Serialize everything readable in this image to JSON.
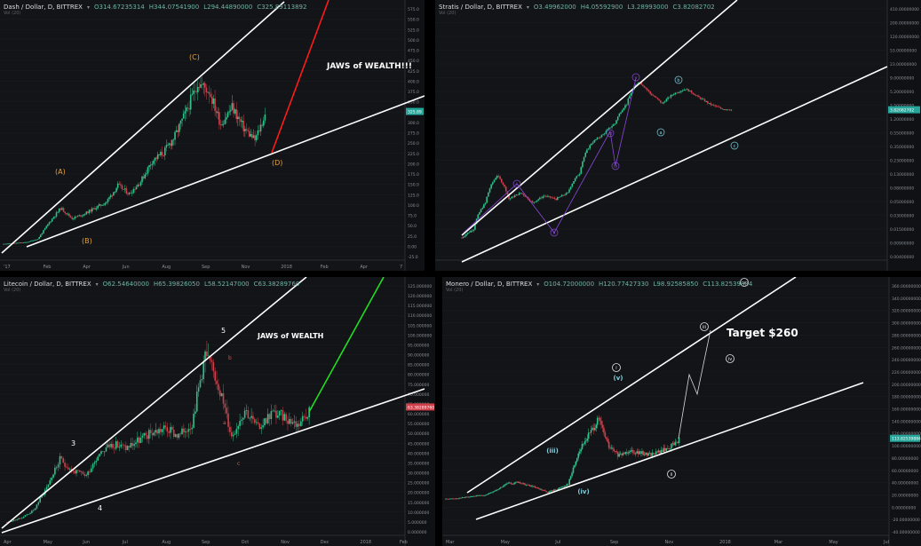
{
  "colors": {
    "background": "#121417",
    "up": "#2ec28b",
    "down": "#d0404a",
    "trendline": "#ffffff",
    "dash_projection": "#ff1a1a",
    "ltc_projection": "#22dd22",
    "wave_orange": "#e4a040",
    "wave_purple": "#8a4ad8",
    "wave_teal": "#7fd0e0",
    "wave_red": "#e05050"
  },
  "panels": {
    "dash": {
      "header": {
        "symbol": "Dash / Dollar, D, BITTREX",
        "open": "O314.67235314",
        "high": "H344.07541900",
        "low": "L294.44890000",
        "close": "C325.89113892"
      },
      "sub": "Vol (20)",
      "annotation": "JAWS of WEALTH!!!",
      "x_ticks": [
        "'17",
        "Feb",
        "Apr",
        "Jun",
        "Aug",
        "Sep",
        "Nov",
        "2018",
        "Feb",
        "Apr",
        "7"
      ],
      "y_ticks": [
        "575.0",
        "550.0",
        "525.0",
        "500.0",
        "475.0",
        "450.0",
        "425.0",
        "400.0",
        "375.0",
        "350.0",
        "325.0",
        "300.0",
        "275.0",
        "250.0",
        "225.0",
        "200.0",
        "175.0",
        "150.0",
        "125.0",
        "100.0",
        "75.0",
        "50.0",
        "25.0",
        "0.00",
        "-25.0"
      ],
      "price_label": "325.89",
      "waves": [
        "(A)",
        "(B)",
        "(C)",
        "(D)"
      ]
    },
    "stratis": {
      "header": {
        "symbol": "Stratis / Dollar, D, BITTREX",
        "open": "O3.49962000",
        "high": "H4.05592900",
        "low": "L3.28993000",
        "close": "C3.82082702"
      },
      "sub": "Vol (20)",
      "x_ticks": [],
      "y_ticks": [
        "410.00000000",
        "200.00000000",
        "120.00000000",
        "53.00000000",
        "23.00000000",
        "9.00000000",
        "5.20000000",
        "2.50000000",
        "1.20000000",
        "0.55000000",
        "0.35000000",
        "0.23000000",
        "0.13000000",
        "0.08000000",
        "0.05000000",
        "0.03000000",
        "0.01500000",
        "0.00900000",
        "0.00400000"
      ],
      "price_label": "3.82082702",
      "waves": [
        "i",
        "ii",
        "iii",
        "iv",
        "v",
        "a",
        "b",
        "c"
      ]
    },
    "litecoin": {
      "header": {
        "symbol": "Litecoin / Dollar, D, BITTREX",
        "open": "O62.54640000",
        "high": "H65.39826050",
        "low": "L58.52147000",
        "close": "C63.38289760"
      },
      "sub": "Vol (20)",
      "annotation": "JAWS of WEALTH",
      "x_ticks": [
        "Apr",
        "May",
        "Jun",
        "Jul",
        "Aug",
        "Sep",
        "Oct",
        "Nov",
        "Dec",
        "2018",
        "Feb"
      ],
      "y_ticks": [
        "125.000000",
        "120.000000",
        "115.000000",
        "110.000000",
        "105.000000",
        "100.000000",
        "95.000000",
        "90.000000",
        "85.000000",
        "80.000000",
        "75.000000",
        "70.000000",
        "65.000000",
        "60.000000",
        "55.000000",
        "50.000000",
        "45.000000",
        "40.000000",
        "35.000000",
        "30.000000",
        "25.000000",
        "20.000000",
        "15.000000",
        "10.000000",
        "5.000000",
        "0.000000"
      ],
      "price_label": "63.38289760",
      "waves": [
        "3",
        "4",
        "5",
        "a",
        "b",
        "c"
      ]
    },
    "monero": {
      "header": {
        "symbol": "Monero / Dollar, D, BITTREX",
        "open": "O104.72000000",
        "high": "H120.77427330",
        "low": "L98.92585850",
        "close": "C113.82539884"
      },
      "sub": "Vol (20)",
      "annotation": "Target $260",
      "x_ticks": [
        "Mar",
        "May",
        "Jul",
        "Sep",
        "Nov",
        "2018",
        "Mar",
        "May",
        "Jul"
      ],
      "y_ticks": [
        "360.00000000",
        "340.00000000",
        "320.00000000",
        "300.00000000",
        "280.00000000",
        "260.00000000",
        "240.00000000",
        "220.00000000",
        "200.00000000",
        "180.00000000",
        "160.00000000",
        "140.00000000",
        "120.00000000",
        "100.00000000",
        "80.00000000",
        "60.00000000",
        "40.00000000",
        "20.00000000",
        "0.00000000",
        "-20.00000000",
        "-40.00000000"
      ],
      "price_label": "113.82539884",
      "waves": [
        "(iii)",
        "(iv)",
        "(v)",
        "i",
        "ii",
        "iii",
        "iv",
        "v"
      ]
    }
  },
  "chart_data": [
    {
      "type": "line",
      "series": [
        {
          "values": [
            8,
            10,
            12,
            20,
            60,
            95,
            70,
            80,
            95,
            110,
            150,
            130,
            160,
            210,
            230,
            270,
            330,
            400,
            380,
            300,
            340,
            290,
            260,
            330
          ]
        }
      ],
      "ylim": [
        -25,
        575
      ]
    },
    {
      "type": "line",
      "series": [
        {
          "values": [
            0.01,
            0.015,
            0.05,
            0.18,
            0.06,
            0.08,
            0.05,
            0.07,
            0.06,
            0.08,
            0.2,
            0.8,
            1.2,
            2,
            5,
            14,
            8,
            5,
            8,
            10,
            7,
            5,
            4,
            3.8
          ]
        }
      ],
      "ylim": [
        0.004,
        410
      ]
    },
    {
      "type": "line",
      "series": [
        {
          "values": [
            4,
            6,
            10,
            22,
            36,
            30,
            28,
            40,
            44,
            42,
            46,
            50,
            52,
            48,
            55,
            90,
            75,
            48,
            62,
            52,
            60,
            58,
            54,
            63
          ]
        }
      ],
      "ylim": [
        0,
        125
      ]
    },
    {
      "type": "line",
      "series": [
        {
          "values": [
            15,
            16,
            18,
            20,
            22,
            30,
            40,
            42,
            38,
            32,
            26,
            32,
            40,
            90,
            120,
            145,
            100,
            85,
            95,
            90,
            88,
            92,
            100,
            114
          ]
        }
      ],
      "ylim": [
        -40,
        360
      ]
    }
  ]
}
